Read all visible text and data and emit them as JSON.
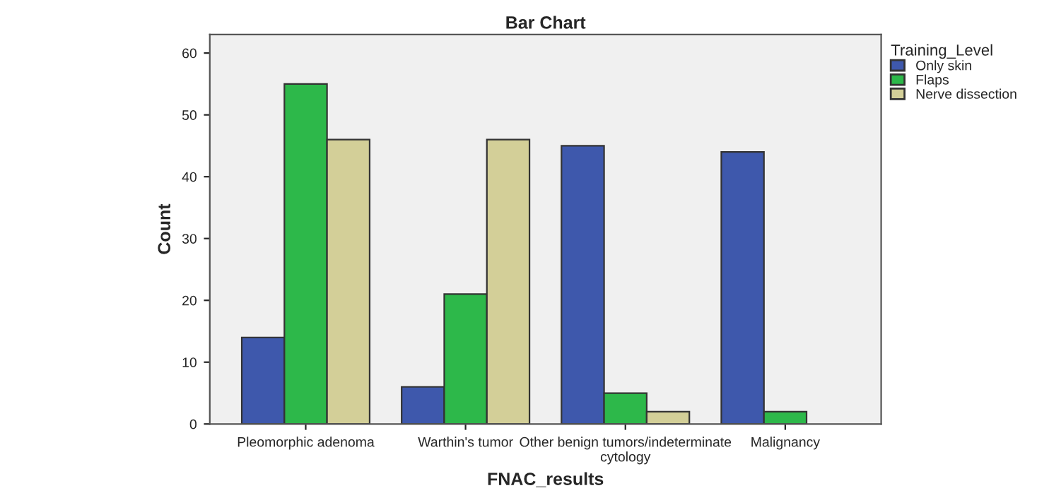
{
  "chart_data": {
    "type": "bar",
    "title": "Bar Chart",
    "xlabel": "FNAC_results",
    "ylabel": "Count",
    "legend_title": "Training_Level",
    "categories": [
      "Pleomorphic adenoma",
      "Warthin's tumor",
      "Other benign tumors/indeterminate\ncytology",
      "Malignancy"
    ],
    "series": [
      {
        "name": "Only skin",
        "color": "#3e58ac",
        "values": [
          14,
          6,
          45,
          44
        ]
      },
      {
        "name": "Flaps",
        "color": "#2db84a",
        "values": [
          55,
          21,
          5,
          2
        ]
      },
      {
        "name": "Nerve dissection",
        "color": "#d3cf98",
        "values": [
          46,
          46,
          2,
          null
        ]
      }
    ],
    "ylim": [
      0,
      63
    ],
    "yticks": [
      0,
      10,
      20,
      30,
      40,
      50,
      60
    ],
    "grid": false,
    "legend": "top right"
  }
}
